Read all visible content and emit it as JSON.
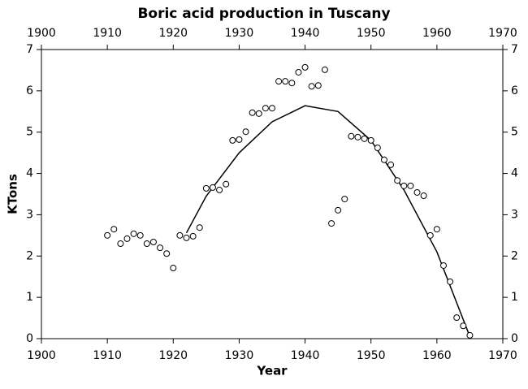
{
  "chart_data": {
    "type": "scatter",
    "title": "Boric acid production in Tuscany",
    "x_label": "Year",
    "y_label": "KTons",
    "color": "#000000",
    "x": [
      1910,
      1911,
      1912,
      1913,
      1914,
      1915,
      1916,
      1917,
      1918,
      1919,
      1920,
      1921,
      1922,
      1923,
      1924,
      1925,
      1926,
      1927,
      1928,
      1929,
      1930,
      1931,
      1932,
      1933,
      1934,
      1935,
      1936,
      1937,
      1938,
      1939,
      1940,
      1941,
      1942,
      1943,
      1944,
      1945,
      1946,
      1947,
      1948,
      1949,
      1950,
      1951,
      1952,
      1953,
      1954,
      1955,
      1956,
      1957,
      1958,
      1959,
      1960,
      1961,
      1962,
      1963,
      1964,
      1965
    ],
    "values": [
      2.5,
      2.65,
      2.3,
      2.42,
      2.54,
      2.5,
      2.3,
      2.34,
      2.2,
      2.06,
      1.71,
      2.5,
      2.44,
      2.48,
      2.69,
      3.64,
      3.66,
      3.6,
      3.74,
      4.8,
      4.82,
      5.01,
      5.47,
      5.45,
      5.58,
      5.58,
      6.23,
      6.23,
      6.19,
      6.45,
      6.57,
      6.11,
      6.13,
      6.51,
      2.79,
      3.11,
      3.38,
      4.9,
      4.88,
      4.84,
      4.8,
      4.62,
      4.33,
      4.21,
      3.83,
      3.7,
      3.7,
      3.54,
      3.46,
      2.5,
      2.65,
      1.77,
      1.38,
      0.51,
      0.31,
      0.08
    ],
    "fit_x": [
      1922,
      1925,
      1930,
      1935,
      1940,
      1945,
      1950,
      1955,
      1960,
      1965
    ],
    "fit_values": [
      2.56,
      3.45,
      4.5,
      5.25,
      5.64,
      5.5,
      4.8,
      3.6,
      2.1,
      0.05
    ],
    "xlim": [
      1900,
      1970
    ],
    "xticks": [
      1900,
      1910,
      1920,
      1930,
      1940,
      1950,
      1960,
      1970
    ],
    "ylim": [
      0,
      7
    ],
    "yticks": [
      0,
      1,
      2,
      3,
      4,
      5,
      6,
      7
    ]
  }
}
